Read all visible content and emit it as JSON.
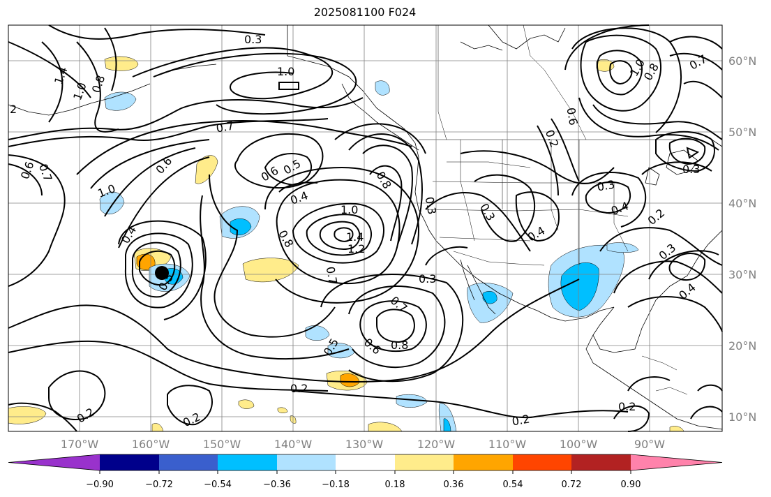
{
  "title": "2025081100 F024",
  "lat_labels": [
    "60°N",
    "50°N",
    "40°N",
    "30°N",
    "20°N",
    "10°N"
  ],
  "lon_labels": [
    "170°W",
    "160°W",
    "150°W",
    "140°W",
    "130°W",
    "120°W",
    "110°W",
    "100°W",
    "90°W"
  ],
  "colorbar": {
    "ticks": [
      "−0.90",
      "−0.72",
      "−0.54",
      "−0.36",
      "−0.18",
      "0.18",
      "0.36",
      "0.54",
      "0.72",
      "0.90"
    ],
    "colors": [
      "#9932cc",
      "#00008b",
      "#3a5fcd",
      "#00bfff",
      "#b0e2ff",
      "#ffffff",
      "#ffec8b",
      "#ffa500",
      "#ff4500",
      "#b22222",
      "#ff82ab"
    ]
  },
  "contour_labels": [
    "0.3",
    "1.0",
    "0.8",
    "1.4",
    "1.0",
    "2",
    "0.7",
    "0.6",
    "0.7",
    "1.0",
    "0.6",
    "0.4",
    "0.6",
    "0.5",
    "0.4",
    "1.0",
    "1.4",
    "1.2",
    "0.8",
    "0.7",
    "0.8",
    "0.3",
    "0.3",
    "0.3",
    "0.4",
    "0.7",
    "0.6",
    "0.8",
    "0.5",
    "0.2",
    "0.2",
    "0.2",
    "0.2",
    "0.2",
    "0.3",
    "0.4",
    "0.2",
    "0.3",
    "0.4",
    "0.3",
    "0.7",
    "0.8",
    "1.0",
    "0.2",
    "0.6",
    "0.5"
  ]
}
